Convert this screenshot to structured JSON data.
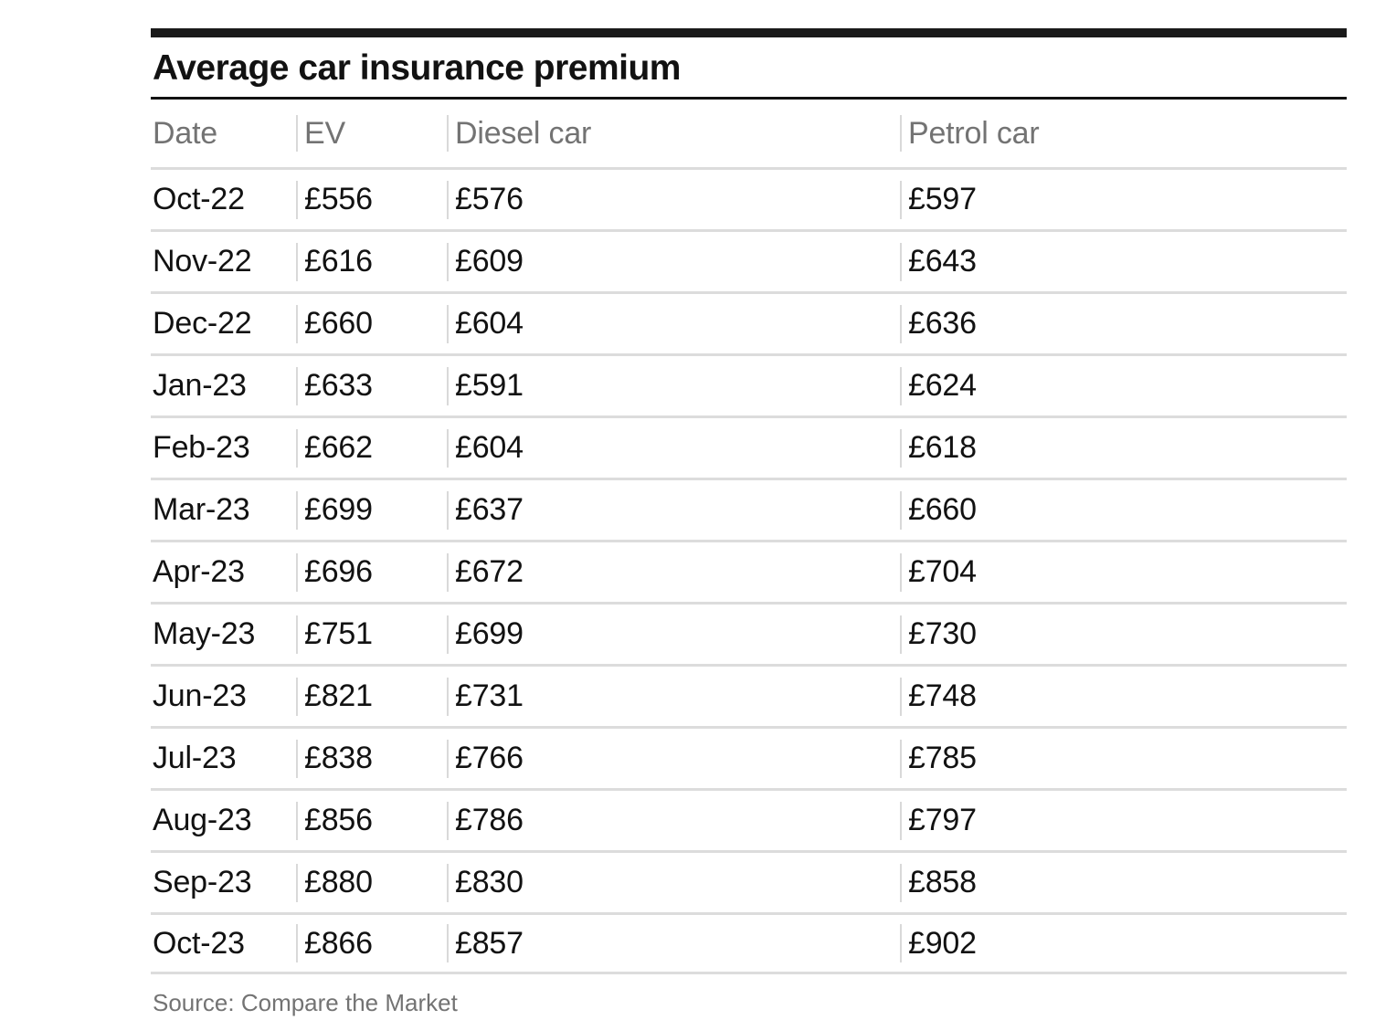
{
  "title": "Average car insurance premium",
  "source": "Source: Compare the Market",
  "colors": {
    "top_bar": "#1a1a1a",
    "title_text": "#121212",
    "title_rule": "#121212",
    "header_text": "#737373",
    "data_text": "#121212",
    "grid_line": "#dcdcdc",
    "cell_divider": "#d9d9d9",
    "source_text": "#737373",
    "background": "#ffffff"
  },
  "chart_data": {
    "type": "table",
    "title": "Average car insurance premium",
    "columns": [
      "Date",
      "EV",
      "Diesel car",
      "Petrol car"
    ],
    "rows": [
      [
        "Oct-22",
        "£556",
        "£576",
        "£597"
      ],
      [
        "Nov-22",
        "£616",
        "£609",
        "£643"
      ],
      [
        "Dec-22",
        "£660",
        "£604",
        "£636"
      ],
      [
        "Jan-23",
        "£633",
        "£591",
        "£624"
      ],
      [
        "Feb-23",
        "£662",
        "£604",
        "£618"
      ],
      [
        "Mar-23",
        "£699",
        "£637",
        "£660"
      ],
      [
        "Apr-23",
        "£696",
        "£672",
        "£704"
      ],
      [
        "May-23",
        "£751",
        "£699",
        "£730"
      ],
      [
        "Jun-23",
        "£821",
        "£731",
        "£748"
      ],
      [
        "Jul-23",
        "£838",
        "£766",
        "£785"
      ],
      [
        "Aug-23",
        "£856",
        "£786",
        "£797"
      ],
      [
        "Sep-23",
        "£880",
        "£830",
        "£858"
      ],
      [
        "Oct-23",
        "£866",
        "£857",
        "£902"
      ]
    ],
    "series": [
      {
        "name": "EV",
        "values": [
          556,
          616,
          660,
          633,
          662,
          699,
          696,
          751,
          821,
          838,
          856,
          880,
          866
        ]
      },
      {
        "name": "Diesel car",
        "values": [
          576,
          609,
          604,
          591,
          604,
          637,
          672,
          699,
          731,
          766,
          786,
          830,
          857
        ]
      },
      {
        "name": "Petrol car",
        "values": [
          597,
          643,
          636,
          624,
          618,
          660,
          704,
          730,
          748,
          785,
          797,
          858,
          902
        ]
      }
    ],
    "categories": [
      "Oct-22",
      "Nov-22",
      "Dec-22",
      "Jan-23",
      "Feb-23",
      "Mar-23",
      "Apr-23",
      "May-23",
      "Jun-23",
      "Jul-23",
      "Aug-23",
      "Sep-23",
      "Oct-23"
    ],
    "unit": "GBP",
    "source": "Source: Compare the Market"
  }
}
